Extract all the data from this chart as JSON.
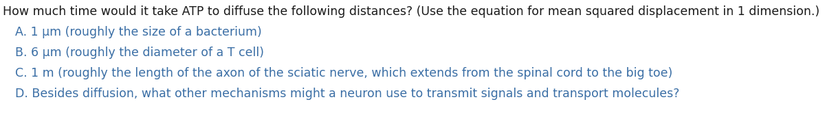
{
  "background_color": "#ffffff",
  "text_color": "#3a6ea5",
  "header_color": "#1a1a1a",
  "header": "How much time would it take ATP to diffuse the following distances? (Use the equation for mean squared displacement in 1 dimension.)",
  "items": [
    "A. 1 μm (roughly the size of a bacterium)",
    "B. 6 μm (roughly the diameter of a T cell)",
    "C. 1 m (roughly the length of the axon of the sciatic nerve, which extends from the spinal cord to the big toe)",
    "D. Besides diffusion, what other mechanisms might a neuron use to transmit signals and transport molecules?"
  ],
  "header_fontsize": 12.5,
  "item_fontsize": 12.5,
  "figsize": [
    12.0,
    1.87
  ],
  "dpi": 100
}
